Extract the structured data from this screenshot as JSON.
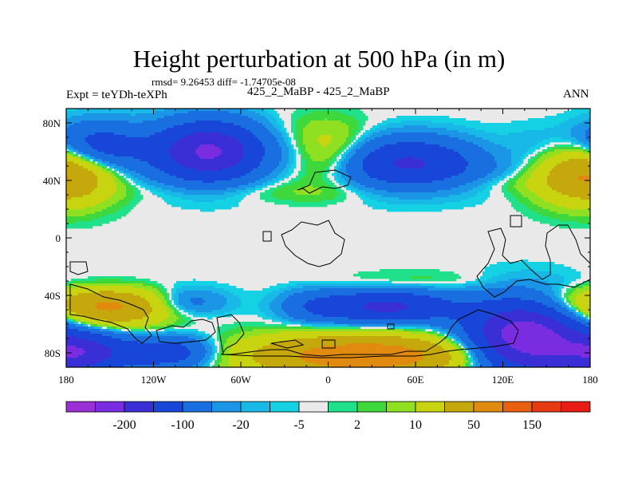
{
  "chart_data": {
    "type": "heatmap",
    "title": "Height perturbation at 500 hPa (in m)",
    "stats_text": "rmsd= 9.26453 diff= -1.74705e-08",
    "left_label": "Expt = teYDh-teXPh",
    "center_label": "425_2_MaBP - 425_2_MaBP",
    "right_label": "ANN",
    "x_range": [
      -180,
      180
    ],
    "y_range": [
      -90,
      90
    ],
    "x_ticks": [
      {
        "value": -180,
        "label": "180"
      },
      {
        "value": -120,
        "label": "120W"
      },
      {
        "value": -60,
        "label": "60W"
      },
      {
        "value": 0,
        "label": "0"
      },
      {
        "value": 60,
        "label": "60E"
      },
      {
        "value": 120,
        "label": "120E"
      },
      {
        "value": 180,
        "label": "180"
      }
    ],
    "y_ticks": [
      {
        "value": 80,
        "label": "80N"
      },
      {
        "value": 40,
        "label": "40N"
      },
      {
        "value": 0,
        "label": "0"
      },
      {
        "value": -40,
        "label": "40S"
      },
      {
        "value": -80,
        "label": "80S"
      }
    ],
    "colorbar": {
      "colors": [
        "#9b30d6",
        "#7a2ce0",
        "#3a2fd6",
        "#1746d8",
        "#1a6fe0",
        "#1b96e6",
        "#18b9e6",
        "#14d2e4",
        "#e9e9e9",
        "#20e08a",
        "#3ed83c",
        "#8ee020",
        "#c8d410",
        "#c4a80c",
        "#e08a10",
        "#e86010",
        "#e83a12",
        "#e81c14"
      ],
      "labels": [
        {
          "after_index": 1,
          "text": "-200"
        },
        {
          "after_index": 3,
          "text": "-100"
        },
        {
          "after_index": 5,
          "text": "-20"
        },
        {
          "after_index": 7,
          "text": "-5"
        },
        {
          "after_index": 9,
          "text": "2"
        },
        {
          "after_index": 11,
          "text": "10"
        },
        {
          "after_index": 13,
          "text": "50"
        },
        {
          "after_index": 15,
          "text": "150"
        }
      ]
    },
    "fields": [
      {
        "lon": -160,
        "lat": 62,
        "slon": 22,
        "slat": 12,
        "amp": -90
      },
      {
        "lon": -82,
        "lat": 60,
        "slon": 26,
        "slat": 14,
        "amp": -160
      },
      {
        "lon": -20,
        "lat": 58,
        "slon": 18,
        "slat": 12,
        "amp": -40
      },
      {
        "lon": -8,
        "lat": 58,
        "slon": 24,
        "slat": 14,
        "amp": 70
      },
      {
        "lon": 55,
        "lat": 52,
        "slon": 36,
        "slat": 12,
        "amp": -110
      },
      {
        "lon": 150,
        "lat": 58,
        "slon": 22,
        "slat": 12,
        "amp": -25
      },
      {
        "lon": 170,
        "lat": 46,
        "slon": 22,
        "slat": 14,
        "amp": 75
      },
      {
        "lon": -172,
        "lat": 46,
        "slon": 20,
        "slat": 14,
        "amp": 60
      },
      {
        "lon": 110,
        "lat": 58,
        "slon": 30,
        "slat": 10,
        "amp": 12
      },
      {
        "lon": -30,
        "lat": 32,
        "slon": 70,
        "slat": 5,
        "amp": 8
      },
      {
        "lon": 120,
        "lat": 38,
        "slon": 40,
        "slat": 5,
        "amp": 8
      },
      {
        "lon": 160,
        "lat": -42,
        "slon": 26,
        "slat": 7,
        "amp": 12
      },
      {
        "lon": -150,
        "lat": -48,
        "slon": 30,
        "slat": 9,
        "amp": 110
      },
      {
        "lon": -170,
        "lat": -80,
        "slon": 22,
        "slat": 10,
        "amp": -130
      },
      {
        "lon": -110,
        "lat": -80,
        "slon": 22,
        "slat": 8,
        "amp": -80
      },
      {
        "lon": -100,
        "lat": -45,
        "slon": 20,
        "slat": 7,
        "amp": -40
      },
      {
        "lon": 25,
        "lat": -82,
        "slon": 55,
        "slat": 10,
        "amp": 140
      },
      {
        "lon": 40,
        "lat": -48,
        "slon": 32,
        "slat": 8,
        "amp": -110
      },
      {
        "lon": -10,
        "lat": -48,
        "slon": 16,
        "slat": 8,
        "amp": -30
      },
      {
        "lon": 60,
        "lat": -30,
        "slon": 40,
        "slat": 5,
        "amp": 10
      },
      {
        "lon": 135,
        "lat": -70,
        "slon": 28,
        "slat": 18,
        "amp": -190
      },
      {
        "lon": -150,
        "lat": -32,
        "slon": 30,
        "slat": 5,
        "amp": -8
      }
    ]
  }
}
